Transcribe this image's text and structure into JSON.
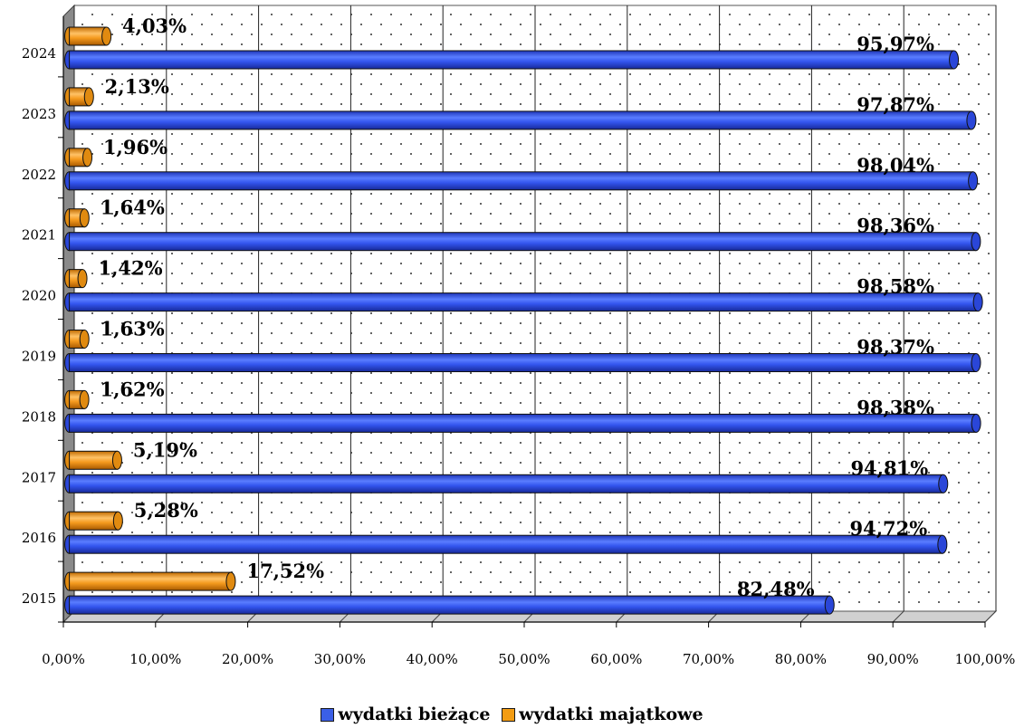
{
  "chart_data": {
    "type": "bar",
    "orientation": "horizontal",
    "categories": [
      "2015",
      "2016",
      "2017",
      "2018",
      "2019",
      "2020",
      "2021",
      "2022",
      "2023",
      "2024"
    ],
    "series": [
      {
        "name": "wydatki bieżące",
        "color": "#3b5fe6",
        "values": [
          82.48,
          94.72,
          94.81,
          98.38,
          98.37,
          98.58,
          98.36,
          98.04,
          97.87,
          95.97
        ],
        "labels": [
          "82,48%",
          "94,72%",
          "94,81%",
          "98,38%",
          "98,37%",
          "98,58%",
          "98,36%",
          "98,04%",
          "97,87%",
          "95,97%"
        ]
      },
      {
        "name": "wydatki majątkowe",
        "color": "#f39c12",
        "values": [
          17.52,
          5.28,
          5.19,
          1.62,
          1.63,
          1.42,
          1.64,
          1.96,
          2.13,
          4.03
        ],
        "labels": [
          "17,52%",
          "5,28%",
          "5,19%",
          "1,62%",
          "1,63%",
          "1,42%",
          "1,64%",
          "1,96%",
          "2,13%",
          "4,03%"
        ]
      }
    ],
    "x_ticks": [
      "0,00%",
      "10,00%",
      "20,00%",
      "30,00%",
      "40,00%",
      "50,00%",
      "60,00%",
      "70,00%",
      "80,00%",
      "90,00%",
      "100,00%"
    ],
    "xlim": [
      0,
      100
    ],
    "grid": true,
    "legend": "bottom"
  }
}
